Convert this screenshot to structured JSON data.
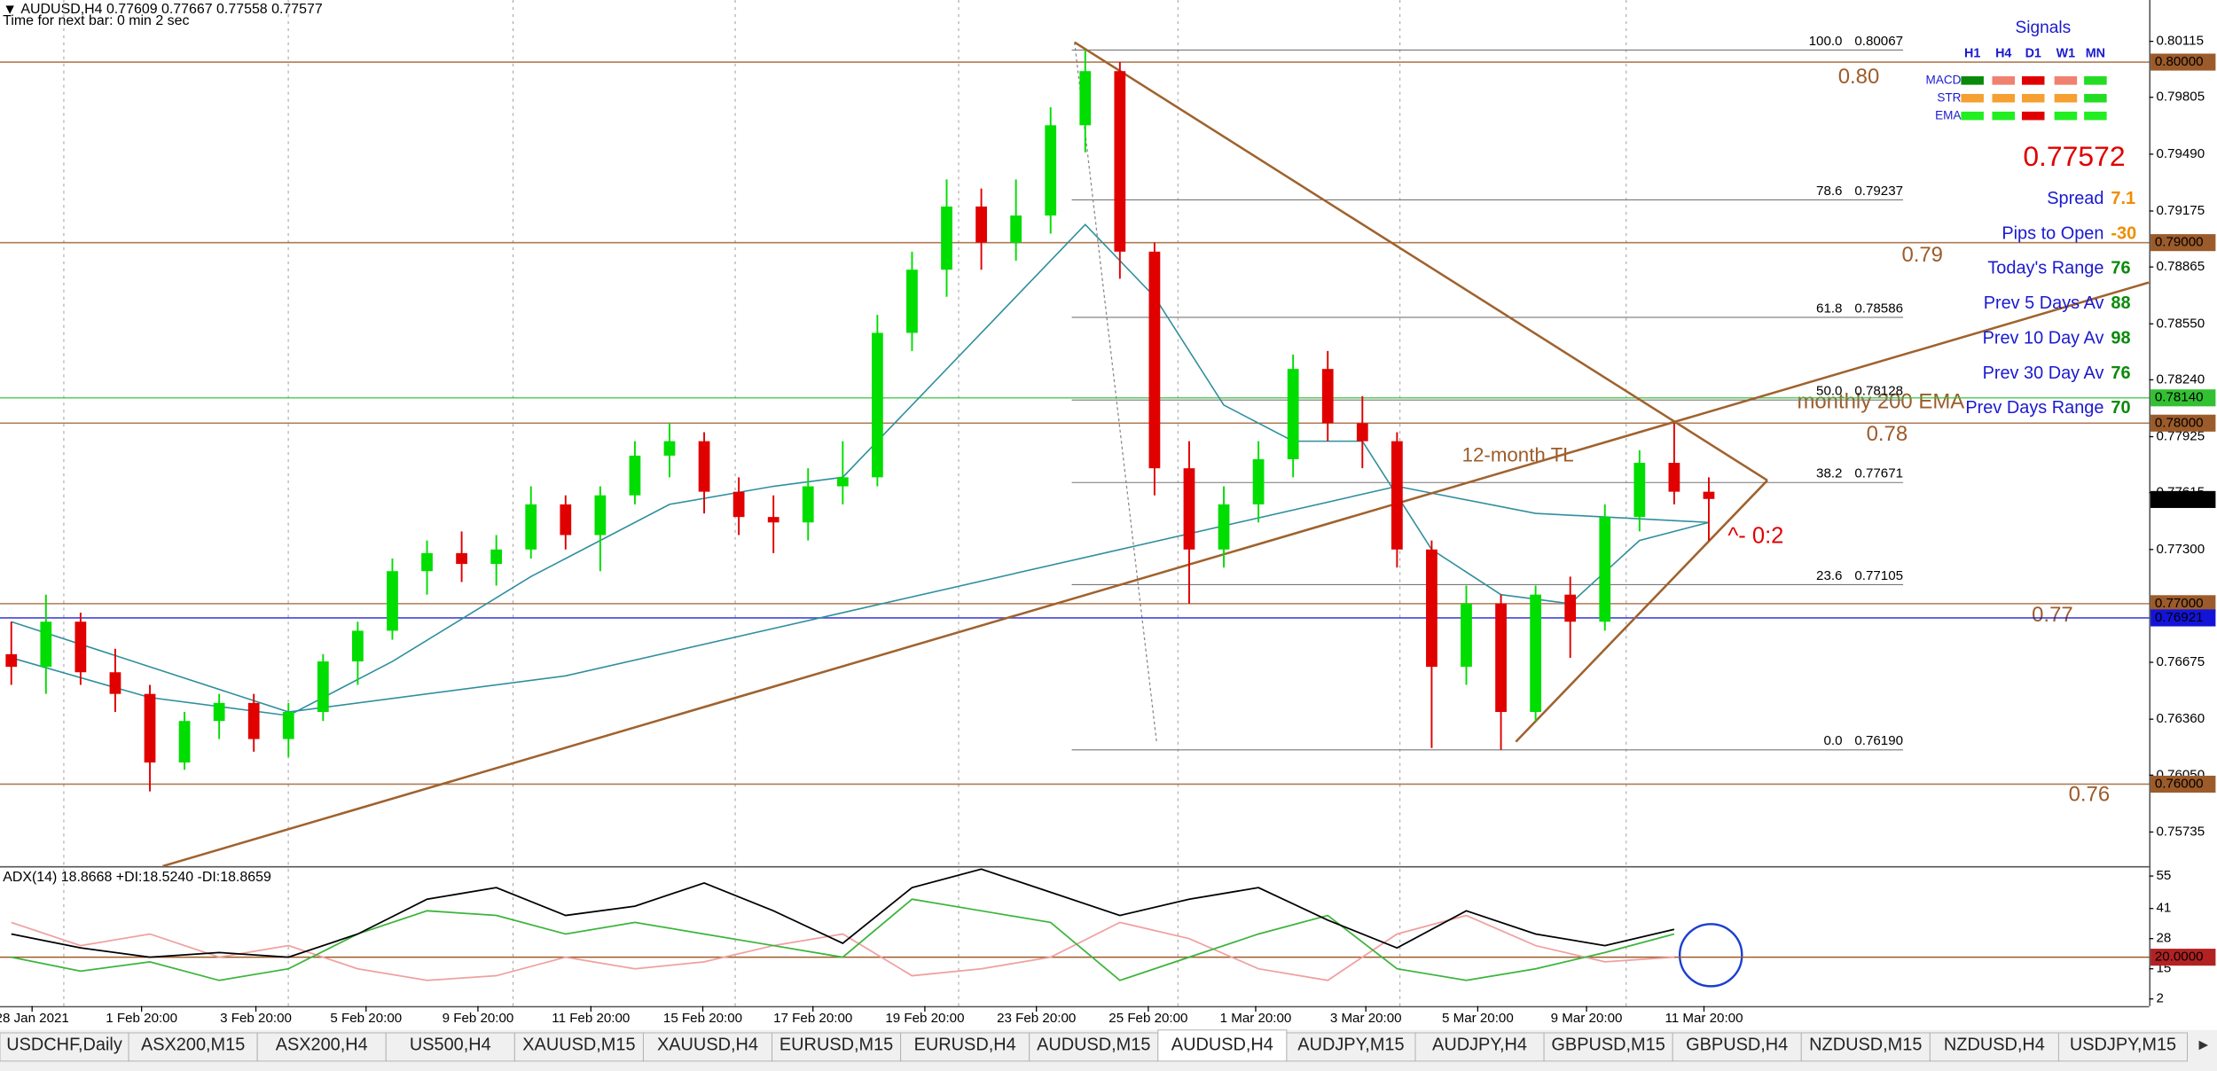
{
  "header": {
    "symbol_line": "AUDUSD,H4  0.77609 0.77667 0.77558 0.77577",
    "timer": "Time for next bar: 0 min 2 sec"
  },
  "chart_data": {
    "type": "candlestick",
    "xlim": [
      -0.3265,
      61.71
    ],
    "ylim": [
      0.75546,
      0.80344
    ],
    "up_color": "#00dd00",
    "down_color": "#e00000",
    "yticks": [
      {
        "value": 0.80115,
        "label": "0.80115"
      },
      {
        "value": 0.79805,
        "label": "0.79805"
      },
      {
        "value": 0.7949,
        "label": "0.79490"
      },
      {
        "value": 0.79175,
        "label": "0.79175"
      },
      {
        "value": 0.78865,
        "label": "0.78865"
      },
      {
        "value": 0.7855,
        "label": "0.78550"
      },
      {
        "value": 0.7824,
        "label": "0.78240"
      },
      {
        "value": 0.77925,
        "label": "0.77925"
      },
      {
        "value": 0.77615,
        "label": "0.77615"
      },
      {
        "value": 0.773,
        "label": "0.77300"
      },
      {
        "value": 0.76675,
        "label": "0.76675"
      },
      {
        "value": 0.7636,
        "label": "0.76360"
      },
      {
        "value": 0.7605,
        "label": "0.76050"
      },
      {
        "value": 0.75735,
        "label": "0.75735"
      }
    ],
    "xticks": [
      {
        "value": 0.6,
        "label": "28 Jan 2021"
      },
      {
        "value": 3.76,
        "label": "1 Feb 20:00"
      },
      {
        "value": 7.06,
        "label": "3 Feb 20:00"
      },
      {
        "value": 10.24,
        "label": "5 Feb 20:00"
      },
      {
        "value": 13.47,
        "label": "9 Feb 20:00"
      },
      {
        "value": 16.73,
        "label": "11 Feb 20:00"
      },
      {
        "value": 19.96,
        "label": "15 Feb 20:00"
      },
      {
        "value": 23.14,
        "label": "17 Feb 20:00"
      },
      {
        "value": 26.37,
        "label": "19 Feb 20:00"
      },
      {
        "value": 29.59,
        "label": "23 Feb 20:00"
      },
      {
        "value": 32.82,
        "label": "25 Feb 20:00"
      },
      {
        "value": 35.92,
        "label": "1 Mar 20:00"
      },
      {
        "value": 39.1,
        "label": "3 Mar 20:00"
      },
      {
        "value": 42.33,
        "label": "5 Mar 20:00"
      },
      {
        "value": 45.47,
        "label": "9 Mar 20:00"
      },
      {
        "value": 48.86,
        "label": "11 Mar 20:00"
      }
    ],
    "open": [
      0.7672,
      0.7665,
      0.769,
      0.7662,
      0.765,
      0.7612,
      0.7635,
      0.7645,
      0.7625,
      0.764,
      0.7668,
      0.7685,
      0.7718,
      0.7728,
      0.7722,
      0.773,
      0.7755,
      0.7738,
      0.776,
      0.7782,
      0.779,
      0.7762,
      0.7748,
      0.7745,
      0.7765,
      0.777,
      0.785,
      0.7885,
      0.792,
      0.79,
      0.7915,
      0.7965,
      0.7995,
      0.7895,
      0.7775,
      0.773,
      0.7755,
      0.778,
      0.783,
      0.78,
      0.779,
      0.773,
      0.7665,
      0.77,
      0.764,
      0.7705,
      0.769,
      0.7748,
      0.7778,
      0.7762
    ],
    "high": [
      0.769,
      0.7705,
      0.7695,
      0.7675,
      0.7655,
      0.764,
      0.765,
      0.765,
      0.7645,
      0.7672,
      0.769,
      0.7725,
      0.7735,
      0.774,
      0.7738,
      0.7765,
      0.776,
      0.7765,
      0.779,
      0.78,
      0.7795,
      0.777,
      0.776,
      0.7775,
      0.779,
      0.786,
      0.7895,
      0.7935,
      0.793,
      0.7935,
      0.7975,
      0.80067,
      0.8,
      0.79,
      0.779,
      0.7765,
      0.779,
      0.7838,
      0.784,
      0.7815,
      0.7795,
      0.7735,
      0.771,
      0.7705,
      0.771,
      0.7715,
      0.7755,
      0.7785,
      0.78,
      0.777
    ],
    "low": [
      0.7655,
      0.765,
      0.7655,
      0.764,
      0.7596,
      0.7608,
      0.7625,
      0.7618,
      0.7615,
      0.7635,
      0.7655,
      0.768,
      0.7705,
      0.7712,
      0.771,
      0.7725,
      0.773,
      0.7718,
      0.7755,
      0.777,
      0.775,
      0.7738,
      0.7728,
      0.7735,
      0.7755,
      0.7765,
      0.784,
      0.787,
      0.7885,
      0.789,
      0.7905,
      0.795,
      0.788,
      0.776,
      0.77,
      0.772,
      0.7745,
      0.777,
      0.779,
      0.7775,
      0.772,
      0.762,
      0.7655,
      0.7619,
      0.7635,
      0.767,
      0.7685,
      0.774,
      0.7755,
      0.7735
    ],
    "close": [
      0.7665,
      0.769,
      0.7662,
      0.765,
      0.7612,
      0.7635,
      0.7645,
      0.7625,
      0.764,
      0.7668,
      0.7685,
      0.7718,
      0.7728,
      0.7722,
      0.773,
      0.7755,
      0.7738,
      0.776,
      0.7782,
      0.779,
      0.7762,
      0.7748,
      0.7745,
      0.7765,
      0.777,
      0.785,
      0.7885,
      0.792,
      0.79,
      0.7915,
      0.7965,
      0.7995,
      0.7895,
      0.7775,
      0.773,
      0.7755,
      0.778,
      0.783,
      0.78,
      0.779,
      0.773,
      0.7665,
      0.77,
      0.764,
      0.7705,
      0.769,
      0.7748,
      0.7778,
      0.7762,
      0.7758
    ],
    "lines": [
      {
        "color": "#2f8f9d",
        "x": [
          0,
          4,
          8,
          11,
          15,
          19,
          22,
          24,
          26,
          29,
          31,
          33,
          35,
          37,
          39,
          41,
          43,
          45,
          47,
          49
        ],
        "values": [
          0.767,
          0.7648,
          0.7638,
          0.7668,
          0.7715,
          0.7755,
          0.7765,
          0.777,
          0.781,
          0.787,
          0.791,
          0.787,
          0.781,
          0.779,
          0.779,
          0.773,
          0.7705,
          0.77,
          0.7735,
          0.7745
        ]
      },
      {
        "color": "#2f8f9d",
        "x": [
          0,
          8,
          16,
          24,
          32,
          40,
          44,
          49
        ],
        "values": [
          0.769,
          0.764,
          0.766,
          0.7695,
          0.773,
          0.7765,
          0.775,
          0.7745
        ]
      }
    ],
    "trendlines": [
      {
        "color": "#a0622d",
        "x": [
          4.37,
          61.7
        ],
        "values": [
          0.75546,
          0.78779
        ]
      },
      {
        "color": "#a0622d",
        "x": [
          30.69,
          50.69
        ],
        "values": [
          0.8011,
          0.77683
        ]
      },
      {
        "color": "#a0622d",
        "x": [
          43.43,
          50.69
        ],
        "values": [
          0.76235,
          0.77683
        ]
      }
    ],
    "markers": [
      {
        "value": 0.8,
        "label": "0.80000",
        "color": "#9c5b2a",
        "line": true
      },
      {
        "value": 0.79,
        "label": "0.79000",
        "color": "#9c5b2a",
        "line": true
      },
      {
        "value": 0.7814,
        "label": "0.78140",
        "color": "#33c133",
        "line": true
      },
      {
        "value": 0.78,
        "label": "0.78000",
        "color": "#9c5b2a",
        "line": true
      },
      {
        "value": 0.77577,
        "label": "0.77577",
        "color": "#000000",
        "line": false
      },
      {
        "value": 0.77,
        "label": "0.77000",
        "color": "#9c5b2a",
        "line": true
      },
      {
        "value": 0.76921,
        "label": "0.76921",
        "color": "#1414d8",
        "line": true
      },
      {
        "value": 0.76,
        "label": "0.76000",
        "color": "#9c5b2a",
        "line": true
      }
    ],
    "fib": [
      {
        "level": "100.0",
        "price": 0.80067,
        "price_label": "0.80067"
      },
      {
        "level": "78.6",
        "price": 0.79237,
        "price_label": "0.79237"
      },
      {
        "level": "61.8",
        "price": 0.78586,
        "price_label": "0.78586"
      },
      {
        "level": "50.0",
        "price": 0.78128,
        "price_label": "0.78128"
      },
      {
        "level": "38.2",
        "price": 0.77671,
        "price_label": "0.77671"
      },
      {
        "level": "23.6",
        "price": 0.77105,
        "price_label": "0.77105"
      },
      {
        "level": "0.0",
        "price": 0.7619,
        "price_label": "0.76190"
      }
    ],
    "annotations": [
      "0.80",
      "0.79",
      "0.78",
      "0.77",
      "0.76",
      "monthly 200 EMA",
      "12-month TL",
      "^- 0:2"
    ]
  },
  "indicator": {
    "title": "ADX(14) 18.8668 +DI:18.5240 -DI:18.8659",
    "ylim": [
      -1.05,
      58.05
    ],
    "yticks": [
      55,
      41,
      28,
      15,
      2
    ],
    "level": {
      "value": 20,
      "label": "20.0000",
      "color": "#b22222"
    },
    "x": [
      0,
      2,
      4,
      6,
      8,
      10,
      12,
      14,
      16,
      18,
      20,
      22,
      24,
      26,
      28,
      30,
      32,
      34,
      36,
      38,
      40,
      42,
      44,
      46,
      48
    ],
    "series": [
      {
        "color": "#f0a0a0",
        "values": [
          35,
          25,
          30,
          20,
          25,
          15,
          10,
          12,
          20,
          15,
          18,
          25,
          30,
          12,
          15,
          20,
          35,
          28,
          15,
          10,
          30,
          38,
          25,
          18,
          20
        ]
      },
      {
        "color": "#3cb43c",
        "values": [
          20,
          14,
          18,
          10,
          15,
          30,
          40,
          38,
          30,
          35,
          30,
          25,
          20,
          45,
          40,
          35,
          10,
          20,
          30,
          38,
          15,
          10,
          15,
          22,
          30
        ]
      },
      {
        "color": "#000000",
        "values": [
          30,
          24,
          20,
          22,
          20,
          30,
          45,
          50,
          38,
          42,
          52,
          40,
          26,
          50,
          58,
          48,
          38,
          45,
          50,
          36,
          24,
          40,
          30,
          25,
          32
        ]
      }
    ]
  },
  "signals": {
    "title": "Signals",
    "columns": [
      "H1",
      "H4",
      "D1",
      "W1",
      "MN"
    ],
    "rows": [
      {
        "name": "MACD",
        "colors": [
          "#0a8a0a",
          "#f08070",
          "#e00000",
          "#f08070",
          "#22dd22"
        ]
      },
      {
        "name": "STR",
        "colors": [
          "#f5a030",
          "#f5a030",
          "#f5a030",
          "#f5a030",
          "#22dd22"
        ]
      },
      {
        "name": "EMA",
        "colors": [
          "#22ee22",
          "#22ee22",
          "#e00000",
          "#22ee22",
          "#22ee22"
        ]
      }
    ]
  },
  "bid_display": {
    "value": 0.77572,
    "color": "#e00000"
  },
  "info": [
    {
      "label": "Spread",
      "value": 7.1,
      "color": "#f08c00"
    },
    {
      "label": "Pips to Open",
      "value": -30,
      "color": "#f08c00"
    },
    {
      "label": "Today's Range",
      "value": 76,
      "color": "#0a8a0a"
    },
    {
      "label": "Prev 5 Days Av",
      "value": 88,
      "color": "#0a8a0a"
    },
    {
      "label": "Prev 10 Day Av",
      "value": 98,
      "color": "#0a8a0a"
    },
    {
      "label": "Prev 30 Day Av",
      "value": 76,
      "color": "#0a8a0a"
    },
    {
      "label": "Prev Days Range",
      "value": 70,
      "color": "#0a8a0a"
    }
  ],
  "tabs": [
    "USDCHF,Daily",
    "ASX200,M15",
    "ASX200,H4",
    "US500,H4",
    "XAUUSD,M15",
    "XAUUSD,H4",
    "EURUSD,M15",
    "EURUSD,H4",
    "AUDUSD,M15",
    "AUDUSD,H4",
    "AUDJPY,M15",
    "AUDJPY,H4",
    "GBPUSD,M15",
    "GBPUSD,H4",
    "NZDUSD,M15",
    "NZDUSD,H4",
    "USDJPY,M15"
  ],
  "active_tab": 9
}
